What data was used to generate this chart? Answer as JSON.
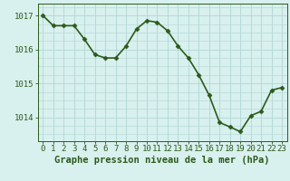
{
  "x": [
    0,
    1,
    2,
    3,
    4,
    5,
    6,
    7,
    8,
    9,
    10,
    11,
    12,
    13,
    14,
    15,
    16,
    17,
    18,
    19,
    20,
    21,
    22,
    23
  ],
  "y": [
    1017.0,
    1016.7,
    1016.7,
    1016.7,
    1016.3,
    1015.85,
    1015.75,
    1015.75,
    1016.1,
    1016.6,
    1016.85,
    1016.8,
    1016.55,
    1016.1,
    1015.75,
    1015.25,
    1014.65,
    1013.85,
    1013.72,
    1013.58,
    1014.05,
    1014.18,
    1014.8,
    1014.88
  ],
  "line_color": "#2d5a1b",
  "marker": "D",
  "marker_size": 2.5,
  "bg_color": "#d8f0ee",
  "grid_color": "#b0d8d4",
  "ylabel_ticks": [
    1014,
    1015,
    1016,
    1017
  ],
  "xlim": [
    -0.5,
    23.5
  ],
  "ylim": [
    1013.3,
    1017.35
  ],
  "xlabel": "Graphe pression niveau de la mer (hPa)",
  "xlabel_fontsize": 7.5,
  "tick_fontsize": 6.5,
  "line_width": 1.2
}
